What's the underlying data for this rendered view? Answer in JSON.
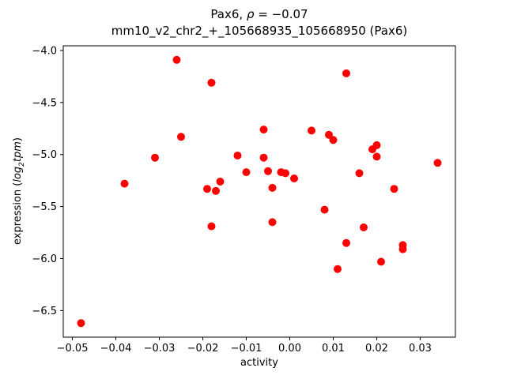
{
  "chart_data": {
    "type": "scatter",
    "title_parts": {
      "prefix": "Pax6, ",
      "rho": "ρ",
      "rest": " = −0.07"
    },
    "subtitle": "mm10_v2_chr2_+_105668935_105668950 (Pax6)",
    "xlabel": "activity",
    "ylabel": {
      "prefix": "expression (",
      "math_pre": "log",
      "math_sub": "2",
      "math_post": "tpm",
      "suffix": ")"
    },
    "xlim": [
      -0.0521,
      0.0381
    ],
    "ylim": [
      -6.755,
      -3.955
    ],
    "xticks": [
      -0.05,
      -0.04,
      -0.03,
      -0.02,
      -0.01,
      0.0,
      0.01,
      0.02,
      0.03
    ],
    "xtick_labels": [
      "−0.05",
      "−0.04",
      "−0.03",
      "−0.02",
      "−0.01",
      "0.00",
      "0.01",
      "0.02",
      "0.03"
    ],
    "yticks": [
      -4.0,
      -4.5,
      -5.0,
      -5.5,
      -6.0,
      -6.5
    ],
    "ytick_labels": [
      "−4.0",
      "−4.5",
      "−5.0",
      "−5.5",
      "−6.0",
      "−6.5"
    ],
    "marker": {
      "color": "#ff0000",
      "radius": 5
    },
    "grid": false,
    "legend": null,
    "points": [
      [
        -0.048,
        -6.62
      ],
      [
        -0.038,
        -5.28
      ],
      [
        -0.031,
        -5.03
      ],
      [
        -0.026,
        -4.09
      ],
      [
        -0.025,
        -4.83
      ],
      [
        -0.018,
        -4.31
      ],
      [
        -0.019,
        -5.33
      ],
      [
        -0.017,
        -5.35
      ],
      [
        -0.016,
        -5.26
      ],
      [
        -0.018,
        -5.69
      ],
      [
        -0.012,
        -5.01
      ],
      [
        -0.01,
        -5.17
      ],
      [
        -0.006,
        -4.76
      ],
      [
        -0.006,
        -5.03
      ],
      [
        -0.005,
        -5.16
      ],
      [
        -0.004,
        -5.32
      ],
      [
        -0.004,
        -5.65
      ],
      [
        -0.002,
        -5.17
      ],
      [
        -0.001,
        -5.18
      ],
      [
        0.001,
        -5.23
      ],
      [
        0.005,
        -4.77
      ],
      [
        0.008,
        -5.53
      ],
      [
        0.009,
        -4.81
      ],
      [
        0.01,
        -4.86
      ],
      [
        0.011,
        -6.1
      ],
      [
        0.013,
        -4.22
      ],
      [
        0.013,
        -5.85
      ],
      [
        0.016,
        -5.18
      ],
      [
        0.017,
        -5.7
      ],
      [
        0.019,
        -4.95
      ],
      [
        0.02,
        -5.02
      ],
      [
        0.02,
        -4.91
      ],
      [
        0.021,
        -6.03
      ],
      [
        0.024,
        -5.33
      ],
      [
        0.026,
        -5.87
      ],
      [
        0.026,
        -5.91
      ],
      [
        0.034,
        -5.08
      ]
    ]
  }
}
